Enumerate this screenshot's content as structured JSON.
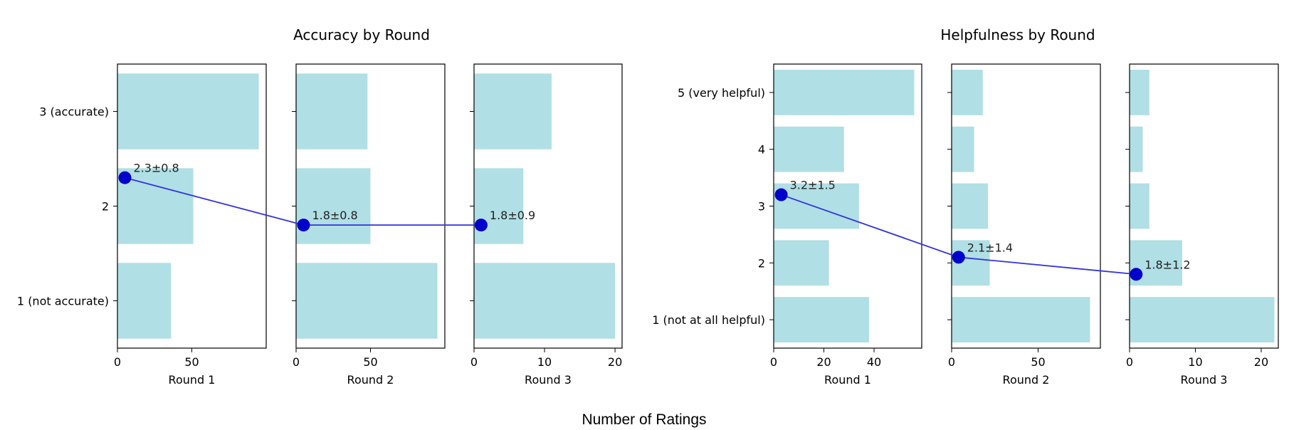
{
  "figure": {
    "xlabel": "Number of Ratings"
  },
  "chart_data": [
    {
      "type": "bar",
      "orientation": "horizontal",
      "title": "Accuracy by Round",
      "categories": [
        "1 (not accurate)",
        "2",
        "3 (accurate)"
      ],
      "bar_color": "#b0dfe5",
      "line_color": "#3333dd",
      "marker_color": "#0000cc",
      "panels": [
        {
          "xlabel": "Round 1",
          "xlim": [
            0,
            100
          ],
          "xticks": [
            0,
            50
          ],
          "values": [
            36,
            51,
            95
          ],
          "mean": 2.3,
          "sd": 0.8,
          "mean_label": "2.3±0.8",
          "marker_x": 5
        },
        {
          "xlabel": "Round 2",
          "xlim": [
            0,
            100
          ],
          "xticks": [
            0,
            50
          ],
          "values": [
            95,
            50,
            48
          ],
          "mean": 1.8,
          "sd": 0.8,
          "mean_label": "1.8±0.8",
          "marker_x": 5
        },
        {
          "xlabel": "Round 3",
          "xlim": [
            0,
            21
          ],
          "xticks": [
            0,
            10,
            20
          ],
          "values": [
            20,
            7,
            11
          ],
          "mean": 1.8,
          "sd": 0.9,
          "mean_label": "1.8±0.9",
          "marker_x": 1
        }
      ]
    },
    {
      "type": "bar",
      "orientation": "horizontal",
      "title": "Helpfulness by Round",
      "categories": [
        "1 (not at all helpful)",
        "2",
        "3",
        "4",
        "5 (very helpful)"
      ],
      "bar_color": "#b0dfe5",
      "line_color": "#3333dd",
      "marker_color": "#0000cc",
      "panels": [
        {
          "xlabel": "Round 1",
          "xlim": [
            0,
            59
          ],
          "xticks": [
            0,
            20,
            40
          ],
          "values": [
            38,
            22,
            34,
            28,
            56
          ],
          "mean": 3.2,
          "sd": 1.5,
          "mean_label": "3.2±1.5",
          "marker_x": 3
        },
        {
          "xlabel": "Round 2",
          "xlim": [
            0,
            86
          ],
          "xticks": [
            0,
            50
          ],
          "values": [
            80,
            22,
            21,
            13,
            18
          ],
          "mean": 2.1,
          "sd": 1.4,
          "mean_label": "2.1±1.4",
          "marker_x": 4
        },
        {
          "xlabel": "Round 3",
          "xlim": [
            0,
            22.6
          ],
          "xticks": [
            0,
            10,
            20
          ],
          "values": [
            22,
            8,
            3,
            2,
            3
          ],
          "mean": 1.8,
          "sd": 1.2,
          "mean_label": "1.8±1.2",
          "marker_x": 1
        }
      ]
    }
  ]
}
